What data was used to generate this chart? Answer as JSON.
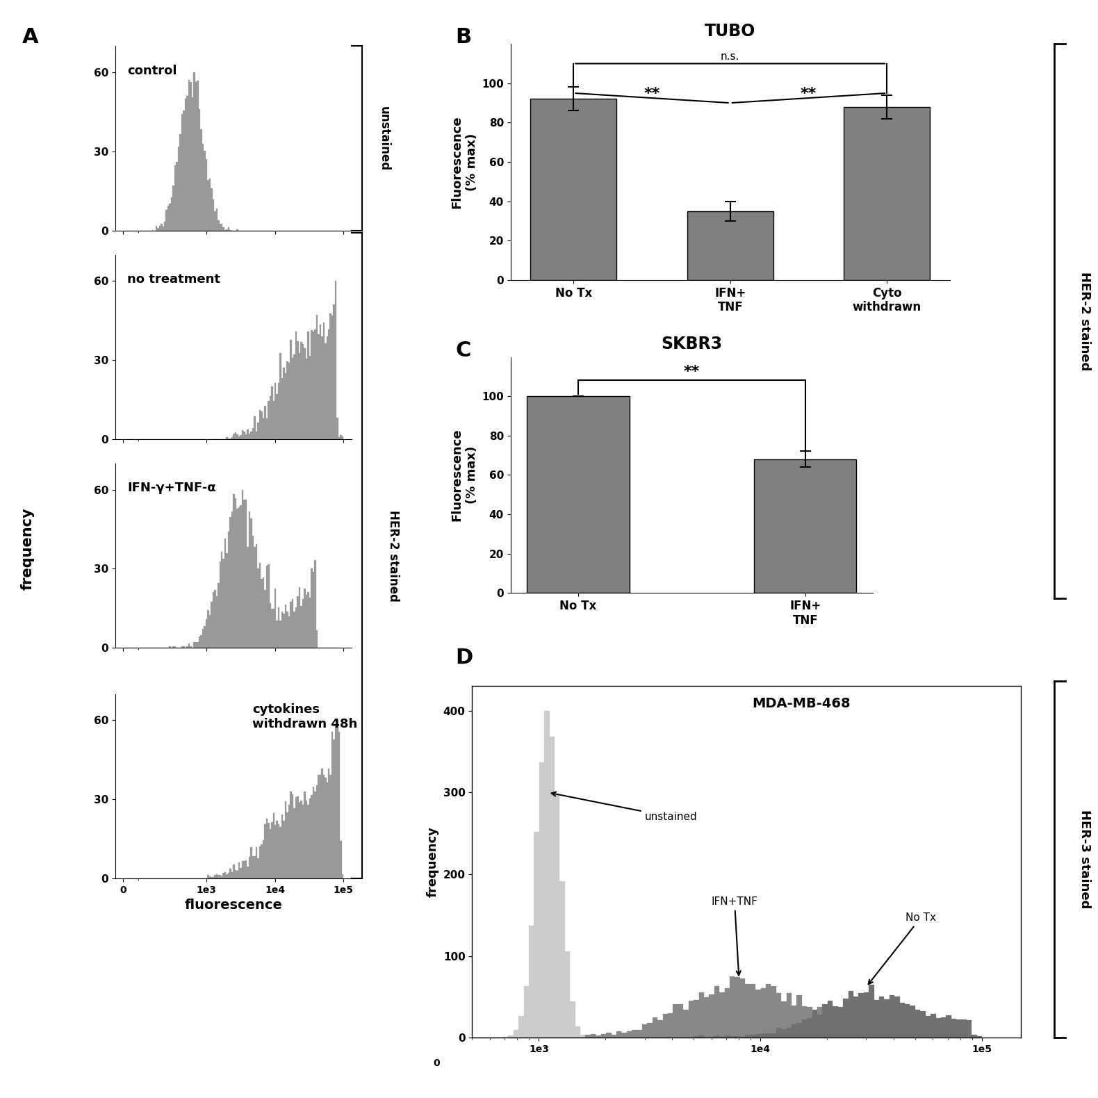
{
  "panel_A_labels": [
    "control",
    "no treatment",
    "IFN-γ+TNF-α",
    "cytokines\nwithdrawn 48h"
  ],
  "panel_B_title": "TUBO",
  "panel_B_values": [
    92,
    35,
    88
  ],
  "panel_B_errors": [
    6,
    5,
    6
  ],
  "panel_B_categories": [
    "No Tx",
    "IFN+\nTNF",
    "Cyto\nwithdrawn"
  ],
  "panel_C_title": "SKBR3",
  "panel_C_values": [
    100,
    68
  ],
  "panel_C_errors": [
    0,
    4
  ],
  "panel_C_categories": [
    "No Tx",
    "IFN+\nTNF"
  ],
  "panel_D_title": "MDA-MB-468",
  "bar_color": "#808080",
  "background_color": "#ffffff",
  "hist_color": "#999999",
  "right_label_HER2": "HER-2 stained",
  "right_label_HER3": "HER-3 stained",
  "ylabel_fluorescence": "Fluorescence\n(% max)"
}
